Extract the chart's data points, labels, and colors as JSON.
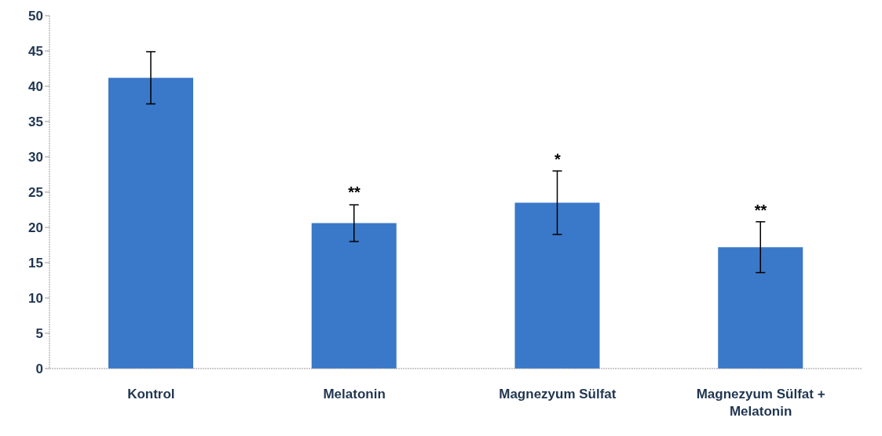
{
  "chart_data": {
    "type": "bar",
    "categories": [
      "Kontrol",
      "Melatonin",
      "Magnezyum Sülfat",
      "Magnezyum Sülfat + Melatonin"
    ],
    "values": [
      41.2,
      20.6,
      23.5,
      17.2
    ],
    "errors": [
      3.7,
      2.6,
      4.5,
      3.6
    ],
    "color": "#3a78c9",
    "ylim": [
      0,
      50
    ],
    "yticks": [
      0,
      5,
      10,
      15,
      20,
      25,
      30,
      35,
      40,
      45,
      50
    ],
    "grid": false,
    "legend": false,
    "annotations": [
      {
        "text": "**",
        "x": "Melatonin",
        "y": 23.3
      },
      {
        "text": "*",
        "x": "Magnezyum Sülfat",
        "y": 28.0
      },
      {
        "text": "**",
        "x": "Magnezyum Sülfat + Melatonin",
        "y": 20.8
      }
    ]
  }
}
